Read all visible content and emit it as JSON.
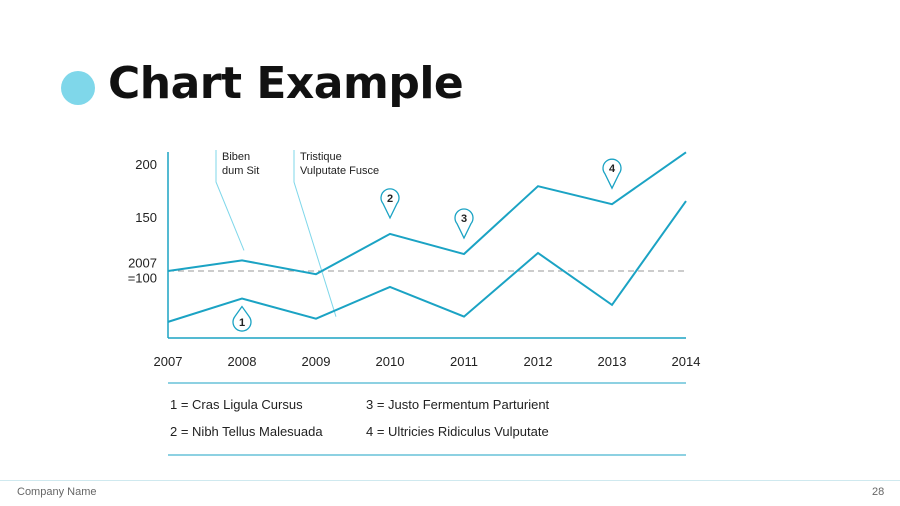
{
  "slide": {
    "title": "Chart Example",
    "company": "Company Name",
    "page": "28"
  },
  "colors": {
    "accent": "#1ba3c4",
    "title_dot": "#7fd7ea",
    "reference_line": "#999999"
  },
  "chart_data": {
    "type": "line",
    "x": [
      "2007",
      "2008",
      "2009",
      "2010",
      "2011",
      "2012",
      "2013",
      "2014"
    ],
    "y_tick_labels": [
      "200",
      "150",
      "2007\n=100"
    ],
    "y_ticks": [
      200,
      150,
      100
    ],
    "ylim": [
      30,
      210
    ],
    "grid": false,
    "series": [
      {
        "values": [
          100,
          110,
          97,
          135,
          116,
          180,
          163,
          212
        ]
      },
      {
        "values": [
          52,
          74,
          55,
          85,
          57,
          117,
          68,
          166
        ]
      }
    ],
    "reference_line": {
      "y": 100,
      "style": "dashed"
    },
    "callouts": [
      {
        "label": "Biben\ndum Sit",
        "year": "2008",
        "series": 0
      },
      {
        "label": "Tristique\nVulputate Fusce",
        "year": "2009",
        "series": 1
      }
    ],
    "markers": [
      {
        "label": "1",
        "year": "2008",
        "series": 1
      },
      {
        "label": "2",
        "year": "2010",
        "series": 0
      },
      {
        "label": "3",
        "year": "2011",
        "series": 0
      },
      {
        "label": "4",
        "year": "2013",
        "series": 0
      }
    ],
    "legend": [
      "1 = Cras Ligula Cursus",
      "2 = Nibh Tellus Malesuada",
      "3 = Justo Fermentum Parturient",
      "4 = Ultricies Ridiculus Vulputate"
    ]
  }
}
